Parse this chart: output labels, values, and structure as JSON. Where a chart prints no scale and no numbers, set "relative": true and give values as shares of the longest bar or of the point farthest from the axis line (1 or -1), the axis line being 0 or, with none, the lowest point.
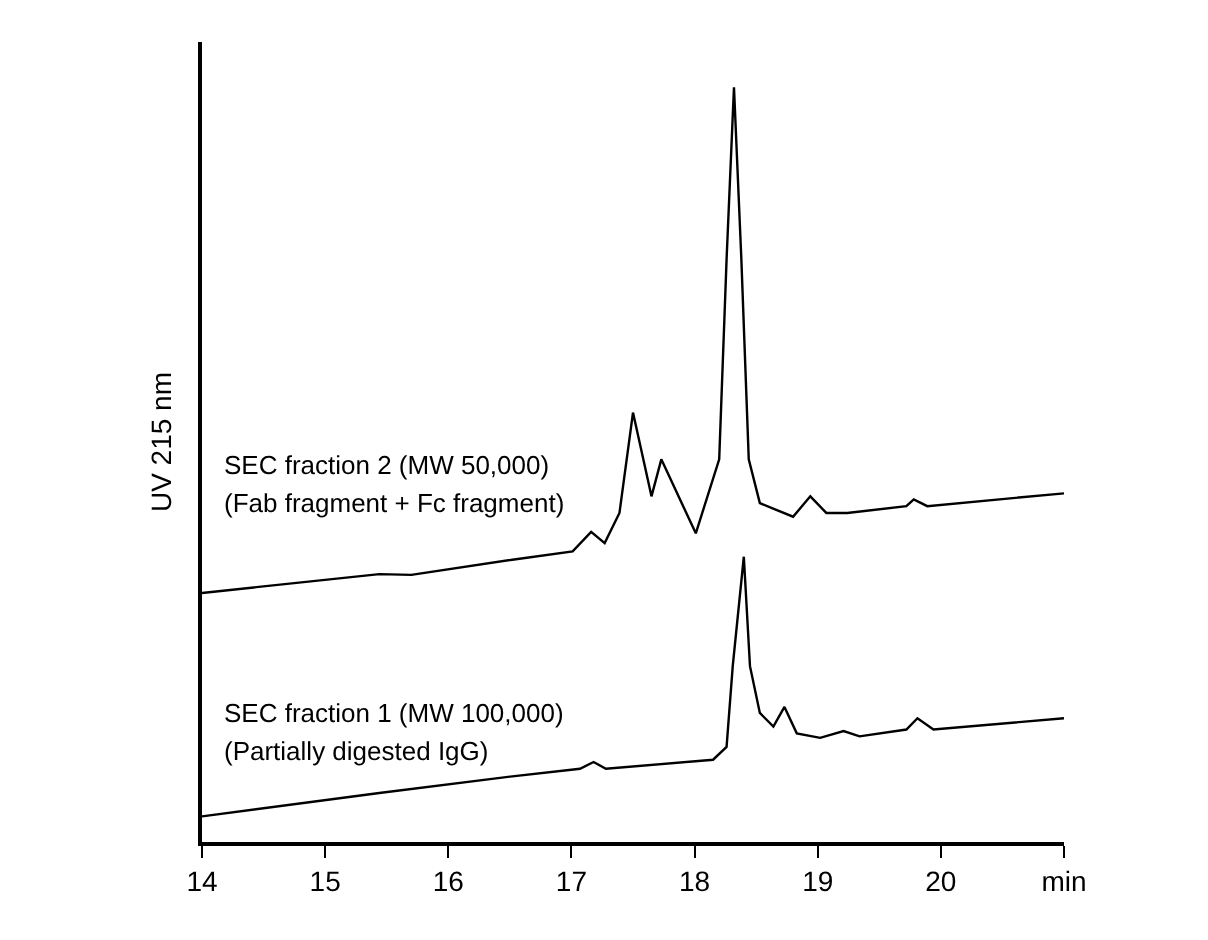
{
  "chart_data": {
    "type": "line",
    "relative": true,
    "ylabel": "UV 215 nm",
    "xlim": [
      14,
      21
    ],
    "xticks": [
      14,
      15,
      16,
      17,
      18,
      19,
      20,
      {
        "value": 21,
        "label": "min"
      }
    ],
    "marker": "none",
    "line_style": "solid",
    "annotations": [
      "SEC fraction 2 (MW 50,000)",
      "(Fab fragment + Fc fragment)",
      "SEC fraction 1 (MW 100,000)",
      "(Partially digested IgG)"
    ],
    "series": [
      {
        "color": "#000000",
        "x": [
          14.0,
          15.44,
          15.7,
          16.52,
          17.01,
          17.16,
          17.27,
          17.39,
          17.5,
          17.65,
          17.73,
          18.01,
          18.2,
          18.26,
          18.32,
          18.38,
          18.44,
          18.53,
          18.8,
          18.94,
          19.07,
          19.24,
          19.72,
          19.78,
          19.89,
          21.0
        ],
        "values": [
          0.33,
          0.355,
          0.354,
          0.374,
          0.385,
          0.411,
          0.396,
          0.436,
          0.569,
          0.458,
          0.507,
          0.409,
          0.507,
          0.772,
          1.0,
          0.772,
          0.507,
          0.449,
          0.431,
          0.458,
          0.436,
          0.436,
          0.445,
          0.454,
          0.445,
          0.462
        ]
      },
      {
        "color": "#000000",
        "x": [
          14.0,
          15.44,
          16.52,
          17.07,
          17.18,
          17.28,
          18.15,
          18.26,
          18.31,
          18.4,
          18.45,
          18.53,
          18.64,
          18.73,
          18.83,
          19.02,
          19.21,
          19.34,
          19.72,
          19.81,
          19.94,
          21.0
        ],
        "values": [
          0.034,
          0.065,
          0.087,
          0.097,
          0.106,
          0.097,
          0.109,
          0.126,
          0.233,
          0.378,
          0.233,
          0.171,
          0.153,
          0.179,
          0.144,
          0.138,
          0.147,
          0.14,
          0.149,
          0.164,
          0.149,
          0.164
        ]
      }
    ]
  }
}
